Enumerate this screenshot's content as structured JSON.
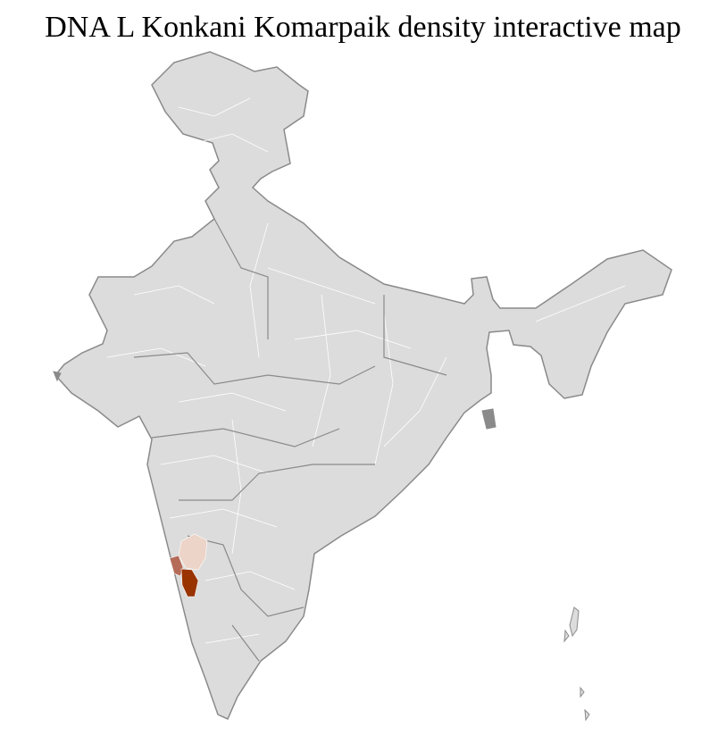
{
  "title": "DNA L Konkani Komarpaik density interactive map",
  "colors": {
    "land": "#dcdcdc",
    "district_border": "#ffffff",
    "state_border": "#8a8a8a",
    "density_low": "#ecd4c8",
    "density_mid": "#b46b58",
    "density_high": "#993300"
  }
}
